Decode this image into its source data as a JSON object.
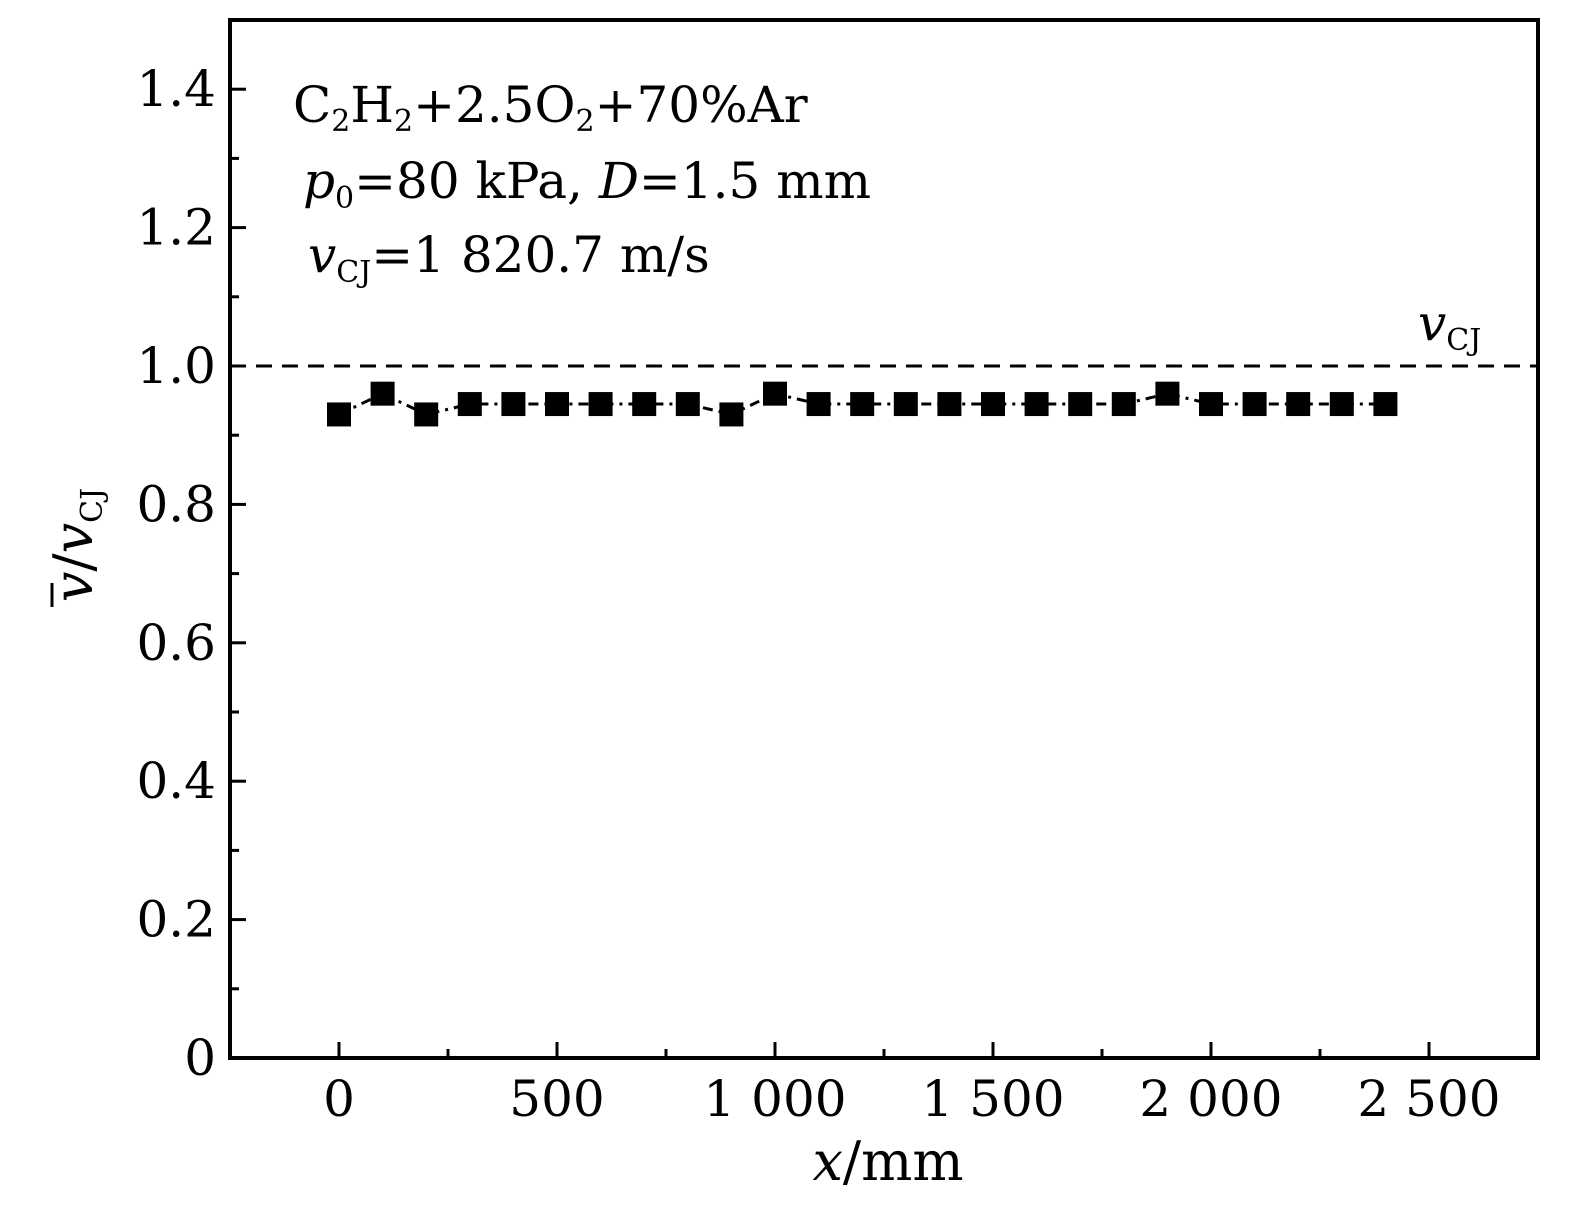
{
  "chart_data": {
    "type": "line",
    "xlabel": {
      "var": "x",
      "unit": "/mm"
    },
    "ylabel": {
      "var": "v",
      "sep": "/",
      "var2": "v",
      "sub": "CJ"
    },
    "xlim": [
      -250,
      2750
    ],
    "ylim": [
      0,
      1.5
    ],
    "x_ticks": [
      0,
      500,
      1000,
      1500,
      2000,
      2500
    ],
    "x_tick_labels": [
      "0",
      "500",
      "1 000",
      "1 500",
      "2 000",
      "2 500"
    ],
    "y_ticks": [
      0,
      0.2,
      0.4,
      0.6,
      0.8,
      1.0,
      1.2,
      1.4
    ],
    "y_tick_labels": [
      "0",
      "0.2",
      "0.4",
      "0.6",
      "0.8",
      "1.0",
      "1.2",
      "1.4"
    ],
    "reference_line": {
      "y": 1.0,
      "style": "dashed",
      "label_var": "v",
      "label_sub": "CJ"
    },
    "annotations": {
      "mixture": {
        "p1": "C",
        "s1": "2",
        "p2": "H",
        "s2": "2",
        "p3": "+2.5O",
        "s3": "2",
        "p4": "+70%Ar"
      },
      "conditions": {
        "var1": "p",
        "sub1": "0",
        "text1": "=80 kPa, ",
        "var2": "D",
        "text2": "=1.5 mm"
      },
      "speed": {
        "var": "v",
        "sub": "CJ",
        "text": "=1 820.7 m/s"
      }
    },
    "series": [
      {
        "marker": "square",
        "line": "dash-dot",
        "x": [
          0,
          100,
          200,
          300,
          400,
          500,
          600,
          700,
          800,
          900,
          1000,
          1100,
          1200,
          1300,
          1400,
          1500,
          1600,
          1700,
          1800,
          1900,
          2000,
          2100,
          2200,
          2300,
          2400
        ],
        "y": [
          0.93,
          0.96,
          0.93,
          0.945,
          0.945,
          0.945,
          0.945,
          0.945,
          0.945,
          0.93,
          0.96,
          0.945,
          0.945,
          0.945,
          0.945,
          0.945,
          0.945,
          0.945,
          0.945,
          0.96,
          0.945,
          0.945,
          0.945,
          0.945,
          0.945
        ]
      }
    ]
  }
}
